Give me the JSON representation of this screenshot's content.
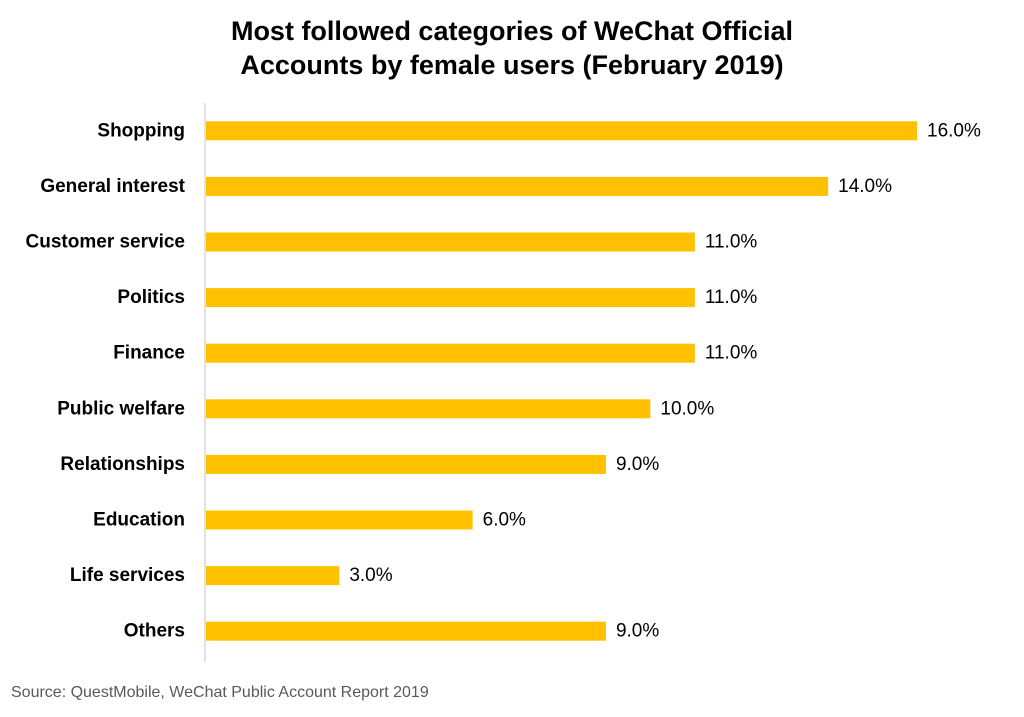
{
  "chart_data": {
    "type": "bar",
    "orientation": "horizontal",
    "title_lines": [
      "Most followed categories of WeChat Official",
      "Accounts by female users (February 2019)"
    ],
    "categories": [
      "Shopping",
      "General interest",
      "Customer service",
      "Politics",
      "Finance",
      "Public welfare",
      "Relationships",
      "Education",
      "Life services",
      "Others"
    ],
    "values": [
      16.0,
      14.0,
      11.0,
      11.0,
      11.0,
      10.0,
      9.0,
      6.0,
      3.0,
      9.0
    ],
    "value_labels": [
      "16.0%",
      "14.0%",
      "11.0%",
      "11.0%",
      "11.0%",
      "10.0%",
      "9.0%",
      "6.0%",
      "3.0%",
      "9.0%"
    ],
    "unit": "%",
    "xlim": [
      0,
      16
    ],
    "grid": false,
    "legend": "none",
    "bar_color": "#FFC000",
    "axis_color": "#D9D9D9"
  },
  "source": "Source: QuestMobile, WeChat Public Account Report 2019"
}
